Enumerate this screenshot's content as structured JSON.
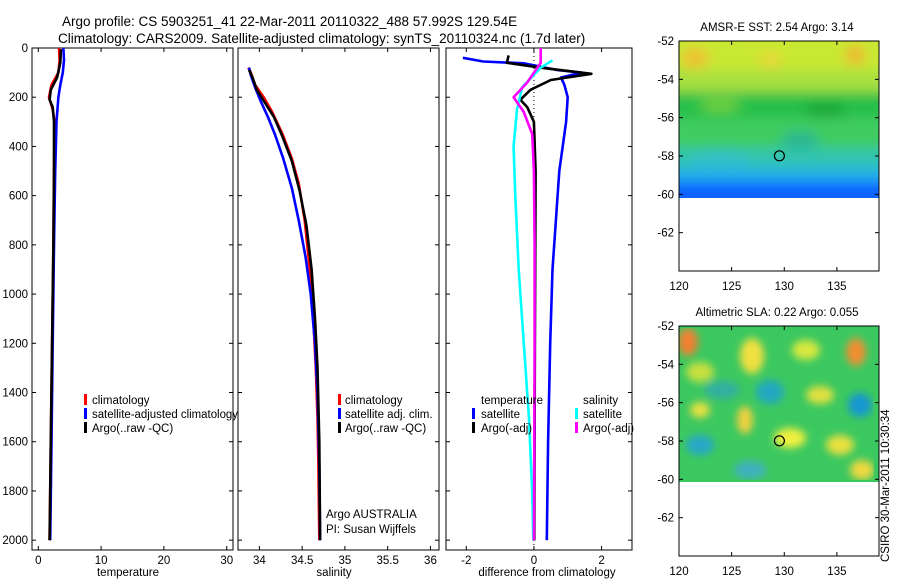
{
  "title": {
    "line1": "Argo profile: CS 5903251_41 22-Mar-2011 20110322_488 57.992S 129.54E",
    "line2": "Climatology: CARS2009. Satellite-adjusted climatology: synTS_20110324.nc (1.7d later)"
  },
  "colors": {
    "climatology": "#ff0000",
    "satellite": "#0000ff",
    "argo": "#000000",
    "sat_salinity": "#00ffff",
    "argo_salinity": "#ff00ff"
  },
  "chart_data": [
    {
      "id": "temperature",
      "type": "line",
      "xlabel": "temperature",
      "ylabel": "",
      "xlim": [
        -1,
        31
      ],
      "ylim": [
        2040,
        0
      ],
      "xticks": [
        0,
        10,
        20,
        30
      ],
      "yticks": [
        0,
        200,
        400,
        600,
        800,
        1000,
        1200,
        1400,
        1600,
        1800,
        2000
      ],
      "legend": [
        "climatology",
        "satellite-adjusted climatology",
        "Argo(..raw -QC)"
      ],
      "series": [
        {
          "name": "climatology",
          "color": "#ff0000",
          "points": [
            [
              3.3,
              0
            ],
            [
              3.4,
              50
            ],
            [
              3.2,
              100
            ],
            [
              2.1,
              150
            ],
            [
              1.7,
              200
            ],
            [
              2.3,
              250
            ],
            [
              2.6,
              300
            ],
            [
              2.5,
              500
            ],
            [
              2.4,
              800
            ],
            [
              2.2,
              1200
            ],
            [
              2.0,
              1600
            ],
            [
              1.8,
              2000
            ]
          ]
        },
        {
          "name": "satellite-adjusted climatology",
          "color": "#0000ff",
          "points": [
            [
              4.0,
              0
            ],
            [
              4.1,
              50
            ],
            [
              3.9,
              100
            ],
            [
              3.5,
              150
            ],
            [
              3.2,
              200
            ],
            [
              2.9,
              300
            ],
            [
              2.7,
              500
            ],
            [
              2.5,
              800
            ],
            [
              2.3,
              1200
            ],
            [
              2.1,
              1600
            ],
            [
              1.9,
              2000
            ]
          ]
        },
        {
          "name": "Argo(..raw -QC)",
          "color": "#000000",
          "points": [
            [
              3.6,
              5
            ],
            [
              3.5,
              60
            ],
            [
              3.0,
              120
            ],
            [
              2.0,
              170
            ],
            [
              1.8,
              210
            ],
            [
              2.3,
              240
            ],
            [
              2.5,
              300
            ],
            [
              2.5,
              500
            ],
            [
              2.4,
              800
            ],
            [
              2.2,
              1200
            ],
            [
              2.0,
              1600
            ],
            [
              1.8,
              2000
            ]
          ]
        }
      ]
    },
    {
      "id": "salinity",
      "type": "line",
      "xlabel": "salinity",
      "ylabel": "",
      "xlim": [
        33.75,
        36.1
      ],
      "ylim": [
        2040,
        0
      ],
      "xticks": [
        34,
        34.5,
        35,
        35.5,
        36
      ],
      "xticklabels": [
        "34",
        "34.5",
        "35",
        "35.5",
        "36"
      ],
      "legend": [
        "climatology",
        "satellite adj. clim.",
        "Argo(..raw -QC)"
      ],
      "annotations": [
        "Argo AUSTRALIA",
        "PI: Susan Wijffels"
      ],
      "series": [
        {
          "name": "climatology",
          "color": "#ff0000",
          "points": [
            [
              33.87,
              80
            ],
            [
              33.9,
              100
            ],
            [
              33.95,
              150
            ],
            [
              34.05,
              200
            ],
            [
              34.15,
              260
            ],
            [
              34.27,
              350
            ],
            [
              34.38,
              450
            ],
            [
              34.46,
              550
            ],
            [
              34.53,
              700
            ],
            [
              34.59,
              900
            ],
            [
              34.63,
              1100
            ],
            [
              34.66,
              1300
            ],
            [
              34.68,
              1500
            ],
            [
              34.69,
              1700
            ],
            [
              34.7,
              2000
            ]
          ]
        },
        {
          "name": "satellite adj. clim.",
          "color": "#0000ff",
          "points": [
            [
              33.88,
              80
            ],
            [
              33.9,
              110
            ],
            [
              33.95,
              160
            ],
            [
              34.02,
              220
            ],
            [
              34.1,
              280
            ],
            [
              34.18,
              350
            ],
            [
              34.28,
              450
            ],
            [
              34.38,
              570
            ],
            [
              34.46,
              700
            ],
            [
              34.54,
              850
            ],
            [
              34.6,
              1000
            ],
            [
              34.65,
              1200
            ],
            [
              34.68,
              1400
            ],
            [
              34.7,
              1700
            ],
            [
              34.71,
              2000
            ]
          ]
        },
        {
          "name": "Argo(..raw -QC)",
          "color": "#000000",
          "points": [
            [
              33.88,
              90
            ],
            [
              33.92,
              120
            ],
            [
              33.97,
              170
            ],
            [
              34.06,
              220
            ],
            [
              34.17,
              280
            ],
            [
              34.27,
              360
            ],
            [
              34.38,
              460
            ],
            [
              34.47,
              580
            ],
            [
              34.55,
              720
            ],
            [
              34.61,
              900
            ],
            [
              34.65,
              1100
            ],
            [
              34.68,
              1300
            ],
            [
              34.7,
              1600
            ],
            [
              34.71,
              2000
            ]
          ]
        }
      ]
    },
    {
      "id": "difference",
      "type": "line",
      "xlabel": "difference from climatology",
      "ylabel": "",
      "xlim": [
        -2.6,
        2.9
      ],
      "ylim": [
        2040,
        0
      ],
      "xticks": [
        -2,
        0,
        2
      ],
      "legend_groups": [
        {
          "heading": "temperature",
          "items": [
            "satellite",
            "Argo(-adj)"
          ]
        },
        {
          "heading": "salinity",
          "items": [
            "satellite",
            "Argo(-adj)"
          ]
        }
      ],
      "series": [
        {
          "name": "temperature satellite",
          "color": "#0000ff",
          "points": [
            [
              -2.1,
              40
            ],
            [
              -1.5,
              55
            ],
            [
              -0.3,
              62
            ],
            [
              0.7,
              90
            ],
            [
              1.4,
              100
            ],
            [
              0.8,
              120
            ],
            [
              0.9,
              150
            ],
            [
              1.0,
              200
            ],
            [
              0.95,
              300
            ],
            [
              0.85,
              400
            ],
            [
              0.75,
              500
            ],
            [
              0.65,
              700
            ],
            [
              0.55,
              900
            ],
            [
              0.48,
              1200
            ],
            [
              0.42,
              1600
            ],
            [
              0.38,
              2000
            ]
          ]
        },
        {
          "name": "temperature Argo(-adj)",
          "color": "#000000",
          "points": [
            [
              -0.75,
              30
            ],
            [
              -0.8,
              60
            ],
            [
              0.2,
              80
            ],
            [
              1.7,
              105
            ],
            [
              0.5,
              130
            ],
            [
              -0.1,
              170
            ],
            [
              -0.4,
              210
            ],
            [
              -0.2,
              240
            ],
            [
              0.0,
              300
            ],
            [
              0.05,
              500
            ],
            [
              0.04,
              800
            ],
            [
              0.03,
              1200
            ],
            [
              0.02,
              1600
            ],
            [
              0.01,
              2000
            ]
          ]
        },
        {
          "name": "salinity satellite",
          "color": "#00ffff",
          "points": [
            [
              0.55,
              50
            ],
            [
              0.2,
              80
            ],
            [
              -0.35,
              160
            ],
            [
              -0.5,
              250
            ],
            [
              -0.6,
              400
            ],
            [
              -0.55,
              600
            ],
            [
              -0.45,
              900
            ],
            [
              -0.3,
              1200
            ],
            [
              -0.15,
              1500
            ],
            [
              -0.05,
              1800
            ],
            [
              -0.02,
              2000
            ]
          ]
        },
        {
          "name": "salinity Argo(-adj)",
          "color": "#ff00ff",
          "points": [
            [
              0.2,
              0
            ],
            [
              0.2,
              60
            ],
            [
              -0.2,
              140
            ],
            [
              -0.6,
              200
            ],
            [
              -0.3,
              260
            ],
            [
              -0.05,
              350
            ],
            [
              0.0,
              500
            ],
            [
              0.02,
              800
            ],
            [
              0.02,
              1200
            ],
            [
              0.01,
              1600
            ],
            [
              0.0,
              2000
            ]
          ]
        }
      ]
    },
    {
      "id": "sst-map",
      "type": "heatmap",
      "title": "AMSR-E SST: 2.54 Argo: 3.14",
      "xlim": [
        120,
        139
      ],
      "ylim": [
        -64,
        -52
      ],
      "xticks": [
        120,
        125,
        130,
        135
      ],
      "yticks": [
        -52,
        -54,
        -56,
        -58,
        -60,
        -62
      ],
      "data_lat_range": [
        -60,
        -52
      ],
      "marker": {
        "lon": 129.54,
        "lat": -57.992
      }
    },
    {
      "id": "sla-map",
      "type": "heatmap",
      "title": "Altimetric SLA: 0.22 Argo: 0.055",
      "xlim": [
        120,
        139
      ],
      "ylim": [
        -64,
        -52
      ],
      "xticks": [
        120,
        125,
        130,
        135
      ],
      "yticks": [
        -52,
        -54,
        -56,
        -58,
        -60,
        -62
      ],
      "data_lat_range": [
        -60,
        -52
      ],
      "marker": {
        "lon": 129.54,
        "lat": -57.992
      }
    }
  ],
  "side_label": "CSIRO 30-Mar-2011 10:30:34"
}
